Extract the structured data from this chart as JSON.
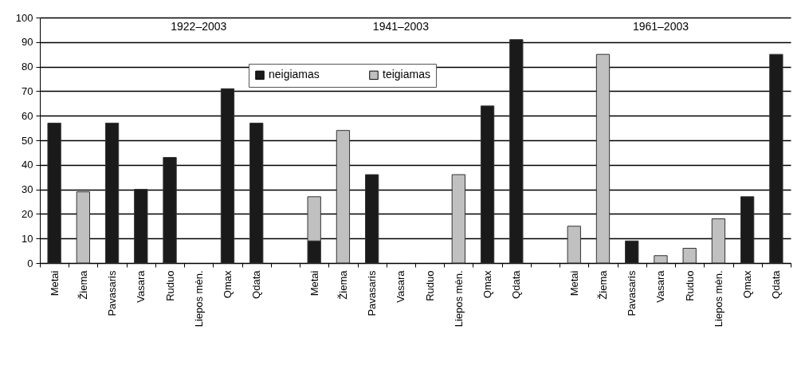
{
  "chart_data": {
    "type": "bar",
    "stacked": true,
    "categories": [
      "Metai",
      "Žiema",
      "Pavasaris",
      "Vasara",
      "Ruduo",
      "Liepos mėn.",
      "Qmax",
      "Qdata",
      null,
      "Metai",
      "Žiema",
      "Pavasaris",
      "Vasara",
      "Ruduo",
      "Liepos mėn.",
      "Qmax",
      "Qdata",
      null,
      "Metai",
      "Žiema",
      "Pavasaris",
      "Vasara",
      "Ruduo",
      "Liepos mėn.",
      "Qmax",
      "Qdata"
    ],
    "series": [
      {
        "name": "neigiamas",
        "color": "#1a1a1a",
        "values": [
          57,
          null,
          57,
          30,
          43,
          null,
          71,
          57,
          null,
          9,
          null,
          36,
          null,
          null,
          null,
          64,
          91,
          null,
          null,
          null,
          9,
          null,
          null,
          null,
          27,
          85
        ]
      },
      {
        "name": "teigiamas",
        "color": "#c0c0c0",
        "values": [
          null,
          29,
          null,
          null,
          null,
          null,
          null,
          null,
          null,
          18,
          54,
          null,
          null,
          null,
          36,
          null,
          null,
          null,
          15,
          85,
          null,
          3,
          6,
          18,
          null,
          null
        ]
      }
    ],
    "annotations": [
      "1922–2003",
      "1941–2003",
      "1961–2003"
    ],
    "ylim": [
      0,
      100
    ],
    "yticks": [
      0,
      10,
      20,
      30,
      40,
      50,
      60,
      70,
      80,
      90,
      100
    ],
    "grid": "y",
    "legend": "top"
  }
}
